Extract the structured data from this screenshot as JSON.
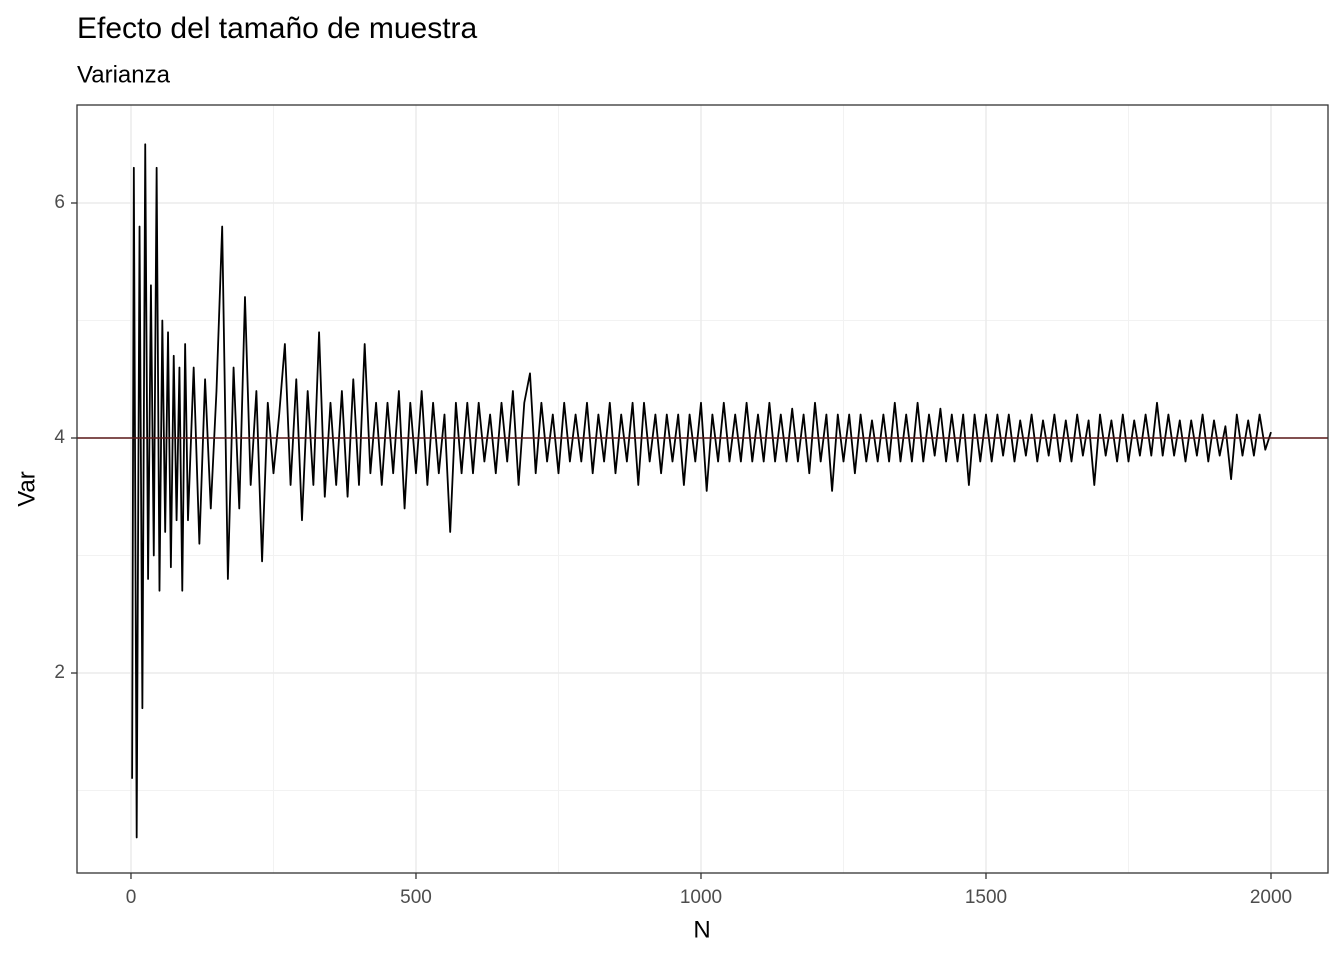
{
  "chart_data": {
    "type": "line",
    "title": "Efecto del tamaño de muestra",
    "subtitle": "Varianza",
    "x_label": "N",
    "y_label": "Var",
    "xlim": [
      -94.7,
      2100
    ],
    "ylim": [
      0.298,
      6.834
    ],
    "xticks": [
      0,
      500,
      1000,
      1500,
      2000
    ],
    "yticks": [
      2,
      4,
      6
    ],
    "xticks_minor": [
      250,
      750,
      1250,
      1750
    ],
    "yticks_minor": [
      1,
      3,
      5
    ],
    "grid": true,
    "hline": {
      "value": 4,
      "color": "#5c1a1a"
    },
    "x": [
      2,
      5,
      10,
      15,
      20,
      25,
      30,
      35,
      40,
      45,
      50,
      55,
      60,
      65,
      70,
      75,
      80,
      85,
      90,
      95,
      100,
      110,
      120,
      130,
      140,
      150,
      160,
      170,
      180,
      190,
      200,
      210,
      220,
      230,
      240,
      250,
      260,
      270,
      280,
      290,
      300,
      310,
      320,
      330,
      340,
      350,
      360,
      370,
      380,
      390,
      400,
      410,
      420,
      430,
      440,
      450,
      460,
      470,
      480,
      490,
      500,
      510,
      520,
      530,
      540,
      550,
      560,
      570,
      580,
      590,
      600,
      610,
      620,
      630,
      640,
      650,
      660,
      670,
      680,
      690,
      700,
      710,
      720,
      730,
      740,
      750,
      760,
      770,
      780,
      790,
      800,
      810,
      820,
      830,
      840,
      850,
      860,
      870,
      880,
      890,
      900,
      910,
      920,
      930,
      940,
      950,
      960,
      970,
      980,
      990,
      1000,
      1010,
      1020,
      1030,
      1040,
      1050,
      1060,
      1070,
      1080,
      1090,
      1100,
      1110,
      1120,
      1130,
      1140,
      1150,
      1160,
      1170,
      1180,
      1190,
      1200,
      1210,
      1220,
      1230,
      1240,
      1250,
      1260,
      1270,
      1280,
      1290,
      1300,
      1310,
      1320,
      1330,
      1340,
      1350,
      1360,
      1370,
      1380,
      1390,
      1400,
      1410,
      1420,
      1430,
      1440,
      1450,
      1460,
      1470,
      1480,
      1490,
      1500,
      1510,
      1520,
      1530,
      1540,
      1550,
      1560,
      1570,
      1580,
      1590,
      1600,
      1610,
      1620,
      1630,
      1640,
      1650,
      1660,
      1670,
      1680,
      1690,
      1700,
      1710,
      1720,
      1730,
      1740,
      1750,
      1760,
      1770,
      1780,
      1790,
      1800,
      1810,
      1820,
      1830,
      1840,
      1850,
      1860,
      1870,
      1880,
      1890,
      1900,
      1910,
      1920,
      1930,
      1940,
      1950,
      1960,
      1970,
      1980,
      1990,
      2000
    ],
    "series": [
      {
        "color": "#000000",
        "values": [
          1.1,
          6.3,
          0.6,
          5.8,
          1.7,
          6.5,
          2.8,
          5.3,
          3.0,
          6.3,
          2.7,
          5.0,
          3.2,
          4.9,
          2.9,
          4.7,
          3.3,
          4.6,
          2.7,
          4.8,
          3.3,
          4.6,
          3.1,
          4.5,
          3.4,
          4.4,
          5.8,
          2.8,
          4.6,
          3.4,
          5.2,
          3.6,
          4.4,
          2.95,
          4.3,
          3.7,
          4.2,
          4.8,
          3.6,
          4.5,
          3.3,
          4.4,
          3.6,
          4.9,
          3.5,
          4.3,
          3.6,
          4.4,
          3.5,
          4.5,
          3.6,
          4.8,
          3.7,
          4.3,
          3.6,
          4.3,
          3.7,
          4.4,
          3.4,
          4.3,
          3.7,
          4.4,
          3.6,
          4.3,
          3.7,
          4.2,
          3.2,
          4.3,
          3.7,
          4.3,
          3.7,
          4.3,
          3.8,
          4.2,
          3.7,
          4.3,
          3.8,
          4.4,
          3.6,
          4.3,
          4.55,
          3.7,
          4.3,
          3.8,
          4.2,
          3.7,
          4.3,
          3.8,
          4.2,
          3.8,
          4.3,
          3.7,
          4.2,
          3.8,
          4.3,
          3.7,
          4.2,
          3.8,
          4.3,
          3.6,
          4.3,
          3.8,
          4.2,
          3.7,
          4.2,
          3.8,
          4.2,
          3.6,
          4.2,
          3.8,
          4.3,
          3.55,
          4.2,
          3.8,
          4.3,
          3.8,
          4.2,
          3.8,
          4.3,
          3.8,
          4.2,
          3.8,
          4.3,
          3.8,
          4.2,
          3.8,
          4.25,
          3.8,
          4.2,
          3.7,
          4.3,
          3.8,
          4.2,
          3.55,
          4.2,
          3.8,
          4.2,
          3.7,
          4.2,
          3.8,
          4.15,
          3.8,
          4.2,
          3.8,
          4.3,
          3.8,
          4.2,
          3.8,
          4.3,
          3.8,
          4.2,
          3.85,
          4.25,
          3.8,
          4.2,
          3.8,
          4.2,
          3.6,
          4.2,
          3.8,
          4.2,
          3.8,
          4.2,
          3.85,
          4.2,
          3.8,
          4.15,
          3.85,
          4.2,
          3.8,
          4.15,
          3.85,
          4.2,
          3.8,
          4.15,
          3.8,
          4.2,
          3.85,
          4.15,
          3.6,
          4.2,
          3.85,
          4.15,
          3.8,
          4.2,
          3.8,
          4.15,
          3.85,
          4.2,
          3.85,
          4.3,
          3.85,
          4.2,
          3.85,
          4.15,
          3.8,
          4.15,
          3.85,
          4.2,
          3.8,
          4.15,
          3.85,
          4.1,
          3.65,
          4.2,
          3.85,
          4.15,
          3.85,
          4.2,
          3.9,
          4.05
        ]
      }
    ]
  }
}
